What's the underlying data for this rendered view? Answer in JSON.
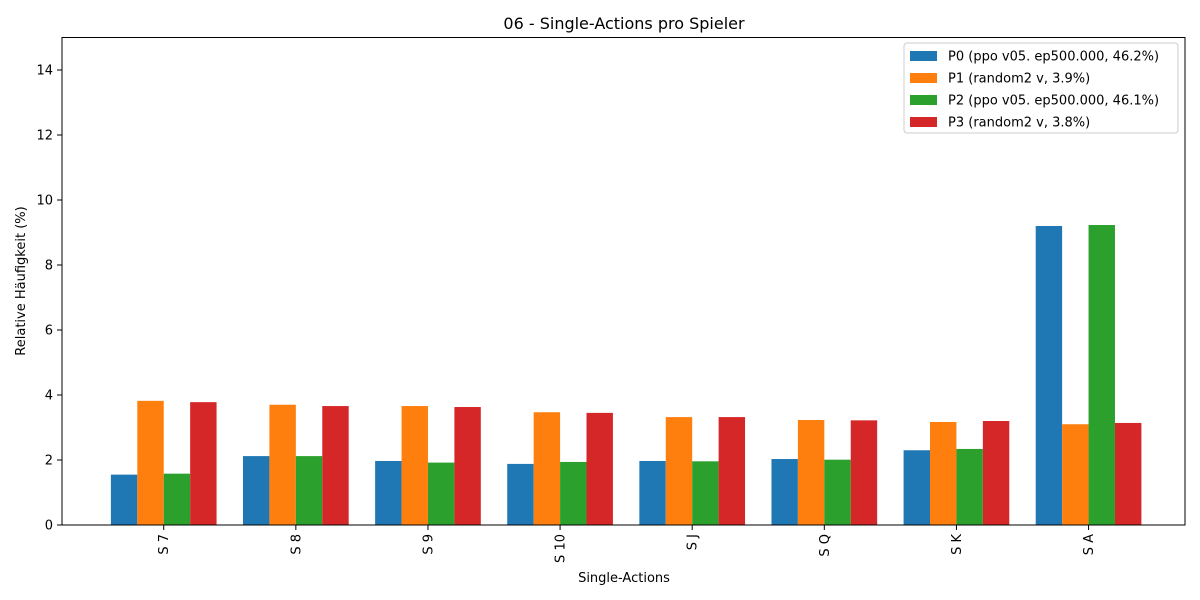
{
  "chart_data": {
    "type": "bar",
    "title": "06 - Single-Actions pro Spieler",
    "xlabel": "Single-Actions",
    "ylabel": "Relative Häufigkeit (%)",
    "ylim": [
      0,
      15
    ],
    "yticks": [
      0,
      2,
      4,
      6,
      8,
      10,
      12,
      14
    ],
    "grid": false,
    "legend_position": "top-right",
    "categories": [
      "S 7",
      "S 8",
      "S 9",
      "S 10",
      "S J",
      "S Q",
      "S K",
      "S A"
    ],
    "series": [
      {
        "name": "P0 (ppo v05. ep500.000, 46.2%)",
        "color": "#1f77b4",
        "values": [
          1.55,
          2.12,
          1.97,
          1.88,
          1.97,
          2.03,
          2.3,
          9.2
        ]
      },
      {
        "name": "P1 (random2 v, 3.9%)",
        "color": "#ff7f0e",
        "values": [
          3.82,
          3.7,
          3.66,
          3.47,
          3.32,
          3.23,
          3.17,
          3.1
        ]
      },
      {
        "name": "P2 (ppo v05. ep500.000, 46.1%)",
        "color": "#2ca02c",
        "values": [
          1.58,
          2.12,
          1.92,
          1.94,
          1.96,
          2.01,
          2.34,
          9.23
        ]
      },
      {
        "name": "P3 (random2 v, 3.8%)",
        "color": "#d62728",
        "values": [
          3.78,
          3.66,
          3.63,
          3.45,
          3.32,
          3.22,
          3.2,
          3.14
        ]
      }
    ]
  }
}
